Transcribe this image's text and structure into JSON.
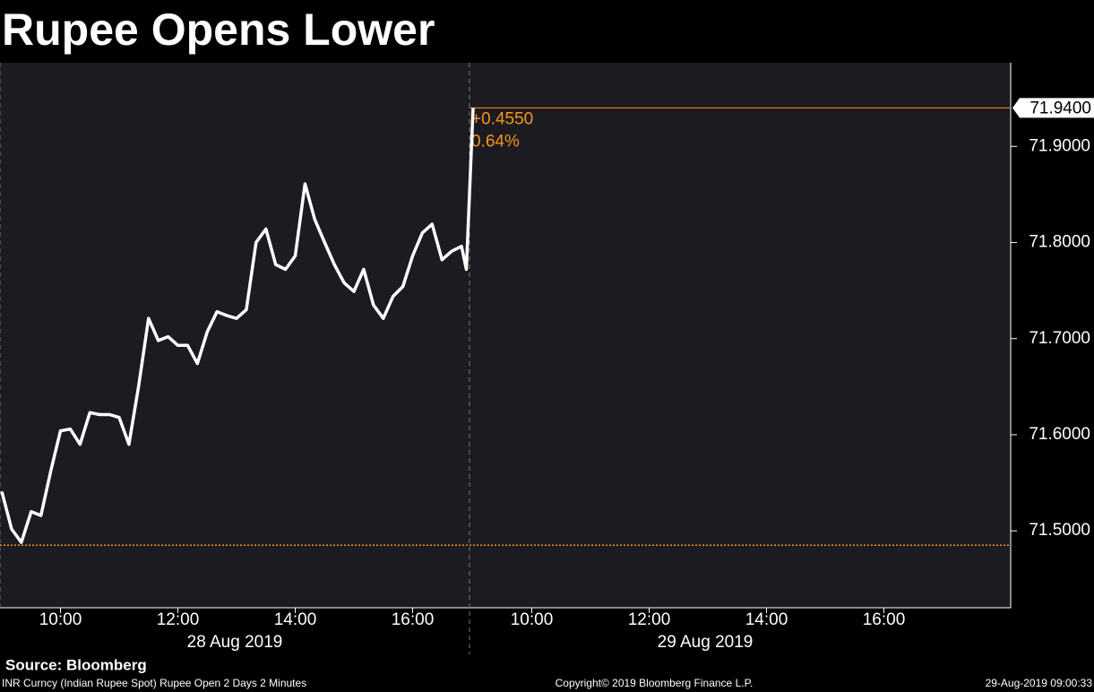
{
  "chart_data": {
    "type": "line",
    "title": "Rupee Opens Lower",
    "source": "Source: Bloomberg",
    "footer_left": "INR Curncy (Indian Rupee Spot) Rupee Open 2 Days 2 Minutes",
    "footer_center": "Copyright© 2019 Bloomberg Finance L.P.",
    "footer_right": "29-Aug-2019 09:00:33",
    "color": "#ffffff",
    "x": [
      "2019-08-28 09:00",
      "2019-08-28 09:10",
      "2019-08-28 09:20",
      "2019-08-28 09:30",
      "2019-08-28 09:40",
      "2019-08-28 09:50",
      "2019-08-28 10:00",
      "2019-08-28 10:10",
      "2019-08-28 10:20",
      "2019-08-28 10:30",
      "2019-08-28 10:40",
      "2019-08-28 10:50",
      "2019-08-28 11:00",
      "2019-08-28 11:10",
      "2019-08-28 11:20",
      "2019-08-28 11:30",
      "2019-08-28 11:40",
      "2019-08-28 11:50",
      "2019-08-28 12:00",
      "2019-08-28 12:10",
      "2019-08-28 12:20",
      "2019-08-28 12:30",
      "2019-08-28 12:40",
      "2019-08-28 12:50",
      "2019-08-28 13:00",
      "2019-08-28 13:10",
      "2019-08-28 13:20",
      "2019-08-28 13:30",
      "2019-08-28 13:40",
      "2019-08-28 13:50",
      "2019-08-28 14:00",
      "2019-08-28 14:10",
      "2019-08-28 14:20",
      "2019-08-28 14:30",
      "2019-08-28 14:40",
      "2019-08-28 14:50",
      "2019-08-28 15:00",
      "2019-08-28 15:10",
      "2019-08-28 15:20",
      "2019-08-28 15:30",
      "2019-08-28 15:40",
      "2019-08-28 15:50",
      "2019-08-28 16:00",
      "2019-08-28 16:10",
      "2019-08-28 16:20",
      "2019-08-28 16:30",
      "2019-08-28 16:40",
      "2019-08-28 16:50",
      "2019-08-28 16:55",
      "2019-08-29 09:00"
    ],
    "values": [
      71.541,
      71.502,
      71.488,
      71.52,
      71.516,
      71.562,
      71.604,
      71.606,
      71.59,
      71.623,
      71.621,
      71.621,
      71.618,
      71.59,
      71.651,
      71.721,
      71.698,
      71.702,
      71.693,
      71.693,
      71.674,
      71.707,
      71.728,
      71.724,
      71.721,
      71.73,
      71.8,
      71.814,
      71.777,
      71.772,
      71.786,
      71.861,
      71.824,
      71.8,
      71.777,
      71.758,
      71.749,
      71.772,
      71.735,
      71.721,
      71.744,
      71.754,
      71.786,
      71.81,
      71.819,
      71.782,
      71.791,
      71.796,
      71.772,
      71.94
    ],
    "ylim": [
      71.42,
      71.987
    ],
    "yticks": [
      {
        "value": 71.5,
        "label": "71.5000"
      },
      {
        "value": 71.6,
        "label": "71.6000"
      },
      {
        "value": 71.7,
        "label": "71.7000"
      },
      {
        "value": 71.8,
        "label": "71.8000"
      },
      {
        "value": 71.9,
        "label": "71.9000"
      }
    ],
    "xticks": [
      {
        "value": "2019-08-28 10:00",
        "label": "10:00"
      },
      {
        "value": "2019-08-28 12:00",
        "label": "12:00"
      },
      {
        "value": "2019-08-28 14:00",
        "label": "14:00"
      },
      {
        "value": "2019-08-28 16:00",
        "label": "16:00"
      },
      {
        "value": "2019-08-29 10:00",
        "label": "10:00"
      },
      {
        "value": "2019-08-29 12:00",
        "label": "12:00"
      },
      {
        "value": "2019-08-29 14:00",
        "label": "14:00"
      },
      {
        "value": "2019-08-29 16:00",
        "label": "16:00"
      }
    ],
    "x_groups": [
      {
        "value": "2019-08-28",
        "label": "28 Aug 2019"
      },
      {
        "value": "2019-08-29",
        "label": "29 Aug 2019"
      }
    ],
    "last_price": {
      "value": 71.94,
      "label": "71.9400"
    },
    "previous_close": 71.485,
    "reference_color": "#f7941d",
    "annotations": [
      "+0.4550",
      "0.64%"
    ]
  }
}
